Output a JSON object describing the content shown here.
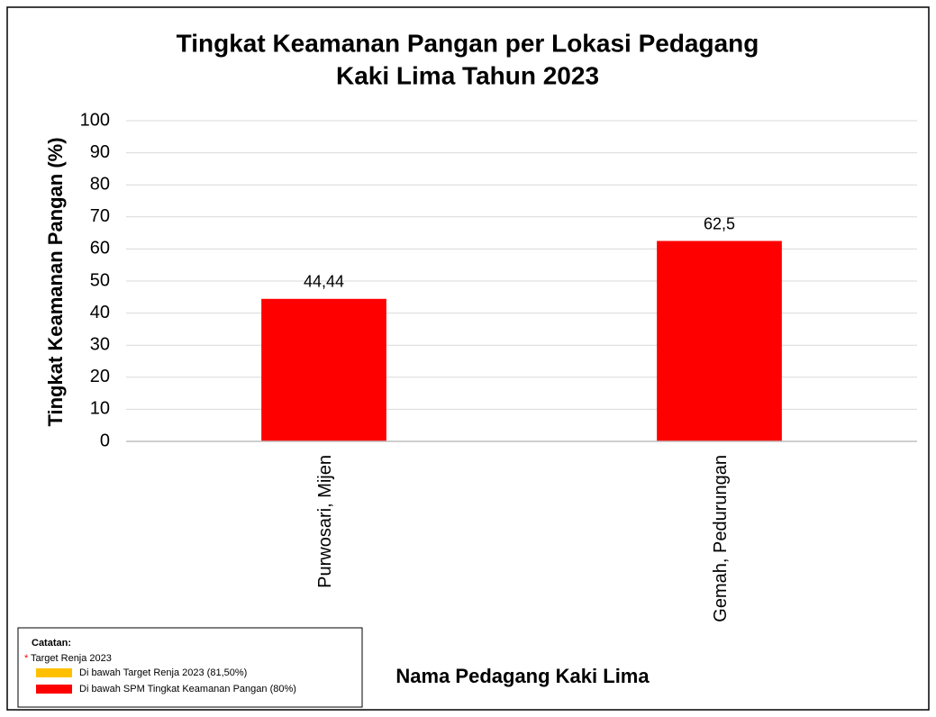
{
  "chart_data": {
    "type": "bar",
    "title": [
      "Tingkat Keamanan Pangan per Lokasi Pedagang",
      "Kaki Lima Tahun 2023"
    ],
    "xlabel": "Nama Pedagang Kaki Lima",
    "ylabel": "Tingkat Keamanan Pangan (%)",
    "categories": [
      "Purwosari, Mijen",
      "Gemah, Pedurungan"
    ],
    "values": [
      44.44,
      62.5
    ],
    "value_labels": [
      "44,44",
      "62,5"
    ],
    "color": "#ff0000",
    "ylim": [
      0,
      100
    ],
    "yticks": [
      0,
      10,
      20,
      30,
      40,
      50,
      60,
      70,
      80,
      90,
      100
    ],
    "grid": true,
    "note_title": "Catatan:",
    "note_marker": "*",
    "note_text": "Target Renja 2023",
    "legend_items": [
      {
        "name": "Di bawah Target Renja 2023 (81,50%)",
        "color": "#ffc000"
      },
      {
        "name": "Di bawah SPM Tingkat Keamanan Pangan (80%)",
        "color": "#ff0000"
      }
    ]
  }
}
